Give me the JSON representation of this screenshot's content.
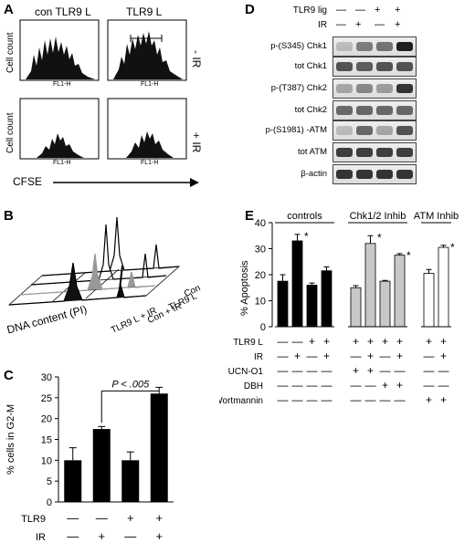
{
  "panels": {
    "a": "A",
    "b": "B",
    "c": "C",
    "d": "D",
    "e": "E"
  },
  "panel_a": {
    "col_titles": [
      "con TLR9 L",
      "TLR9 L"
    ],
    "row_labels": [
      "- IR",
      "+ IR"
    ],
    "y_label": "Cell count",
    "x_tick": "FL1-H",
    "cfse_label": "CFSE"
  },
  "panel_b": {
    "series": [
      "Con",
      "TLR9 L",
      "Con + IR",
      "TLR9 L + IR"
    ],
    "x_label": "DNA content (PI)"
  },
  "panel_d": {
    "header_rows": [
      {
        "label": "TLR9 lig",
        "marks": [
          "—",
          "—",
          "+",
          "+"
        ]
      },
      {
        "label": "IR",
        "marks": [
          "—",
          "+",
          "—",
          "+"
        ]
      }
    ],
    "blots": [
      "p-(S345) Chk1",
      "tot Chk1",
      "p-(T387) Chk2",
      "tot Chk2",
      "p-(S1981) -ATM",
      "tot ATM",
      "β-actin"
    ]
  },
  "chart_data": [
    {
      "panel": "C",
      "type": "bar",
      "ylabel": "% cells in G2-M",
      "ylim": [
        0,
        30
      ],
      "yticks": [
        0,
        5,
        10,
        15,
        20,
        25,
        30
      ],
      "values": [
        10,
        17.5,
        10,
        26
      ],
      "errors": [
        3,
        0.6,
        2,
        1.5
      ],
      "annotation": "P < .005",
      "condition_rows": [
        {
          "label": "TLR9",
          "marks": [
            "—",
            "—",
            "+",
            "+"
          ]
        },
        {
          "label": "IR",
          "marks": [
            "—",
            "+",
            "—",
            "+"
          ]
        }
      ],
      "bar_color": "#000000"
    },
    {
      "panel": "E",
      "type": "bar",
      "ylabel": "% Apoptosis",
      "ylim": [
        0,
        40
      ],
      "yticks": [
        0,
        10,
        20,
        30,
        40
      ],
      "groups": [
        {
          "name": "controls",
          "values": [
            17.5,
            33,
            16,
            21.5
          ],
          "errors": [
            2.5,
            2.5,
            0.8,
            1.5
          ],
          "significant": [
            false,
            true,
            false,
            false
          ],
          "fill": "#000000"
        },
        {
          "name": "Chk1/2 Inhib",
          "values": [
            15,
            32,
            17.5,
            27.5
          ],
          "errors": [
            0.8,
            3,
            0.3,
            0.6
          ],
          "significant": [
            false,
            true,
            false,
            true
          ],
          "fill": "#c8c8c8"
        },
        {
          "name": "ATM Inhib",
          "values": [
            20.5,
            30.5
          ],
          "errors": [
            1.5,
            0.8
          ],
          "significant": [
            false,
            true
          ],
          "fill": "#ffffff"
        }
      ],
      "significance_mark": "*",
      "condition_rows": [
        {
          "label": "TLR9 L",
          "marks": [
            "—",
            "—",
            "+",
            "+",
            "+",
            "+",
            "+",
            "+",
            "+",
            "+"
          ]
        },
        {
          "label": "IR",
          "marks": [
            "—",
            "+",
            "—",
            "+",
            "—",
            "+",
            "—",
            "+",
            "—",
            "+"
          ]
        },
        {
          "label": "UCN-O1",
          "marks": [
            "—",
            "—",
            "—",
            "—",
            "+",
            "+",
            "—",
            "—",
            "—",
            "—"
          ]
        },
        {
          "label": "DBH",
          "marks": [
            "—",
            "—",
            "—",
            "—",
            "—",
            "—",
            "+",
            "+",
            "—",
            "—"
          ]
        },
        {
          "label": "Wortmannin",
          "marks": [
            "—",
            "—",
            "—",
            "—",
            "—",
            "—",
            "—",
            "—",
            "+",
            "+"
          ]
        }
      ]
    }
  ]
}
